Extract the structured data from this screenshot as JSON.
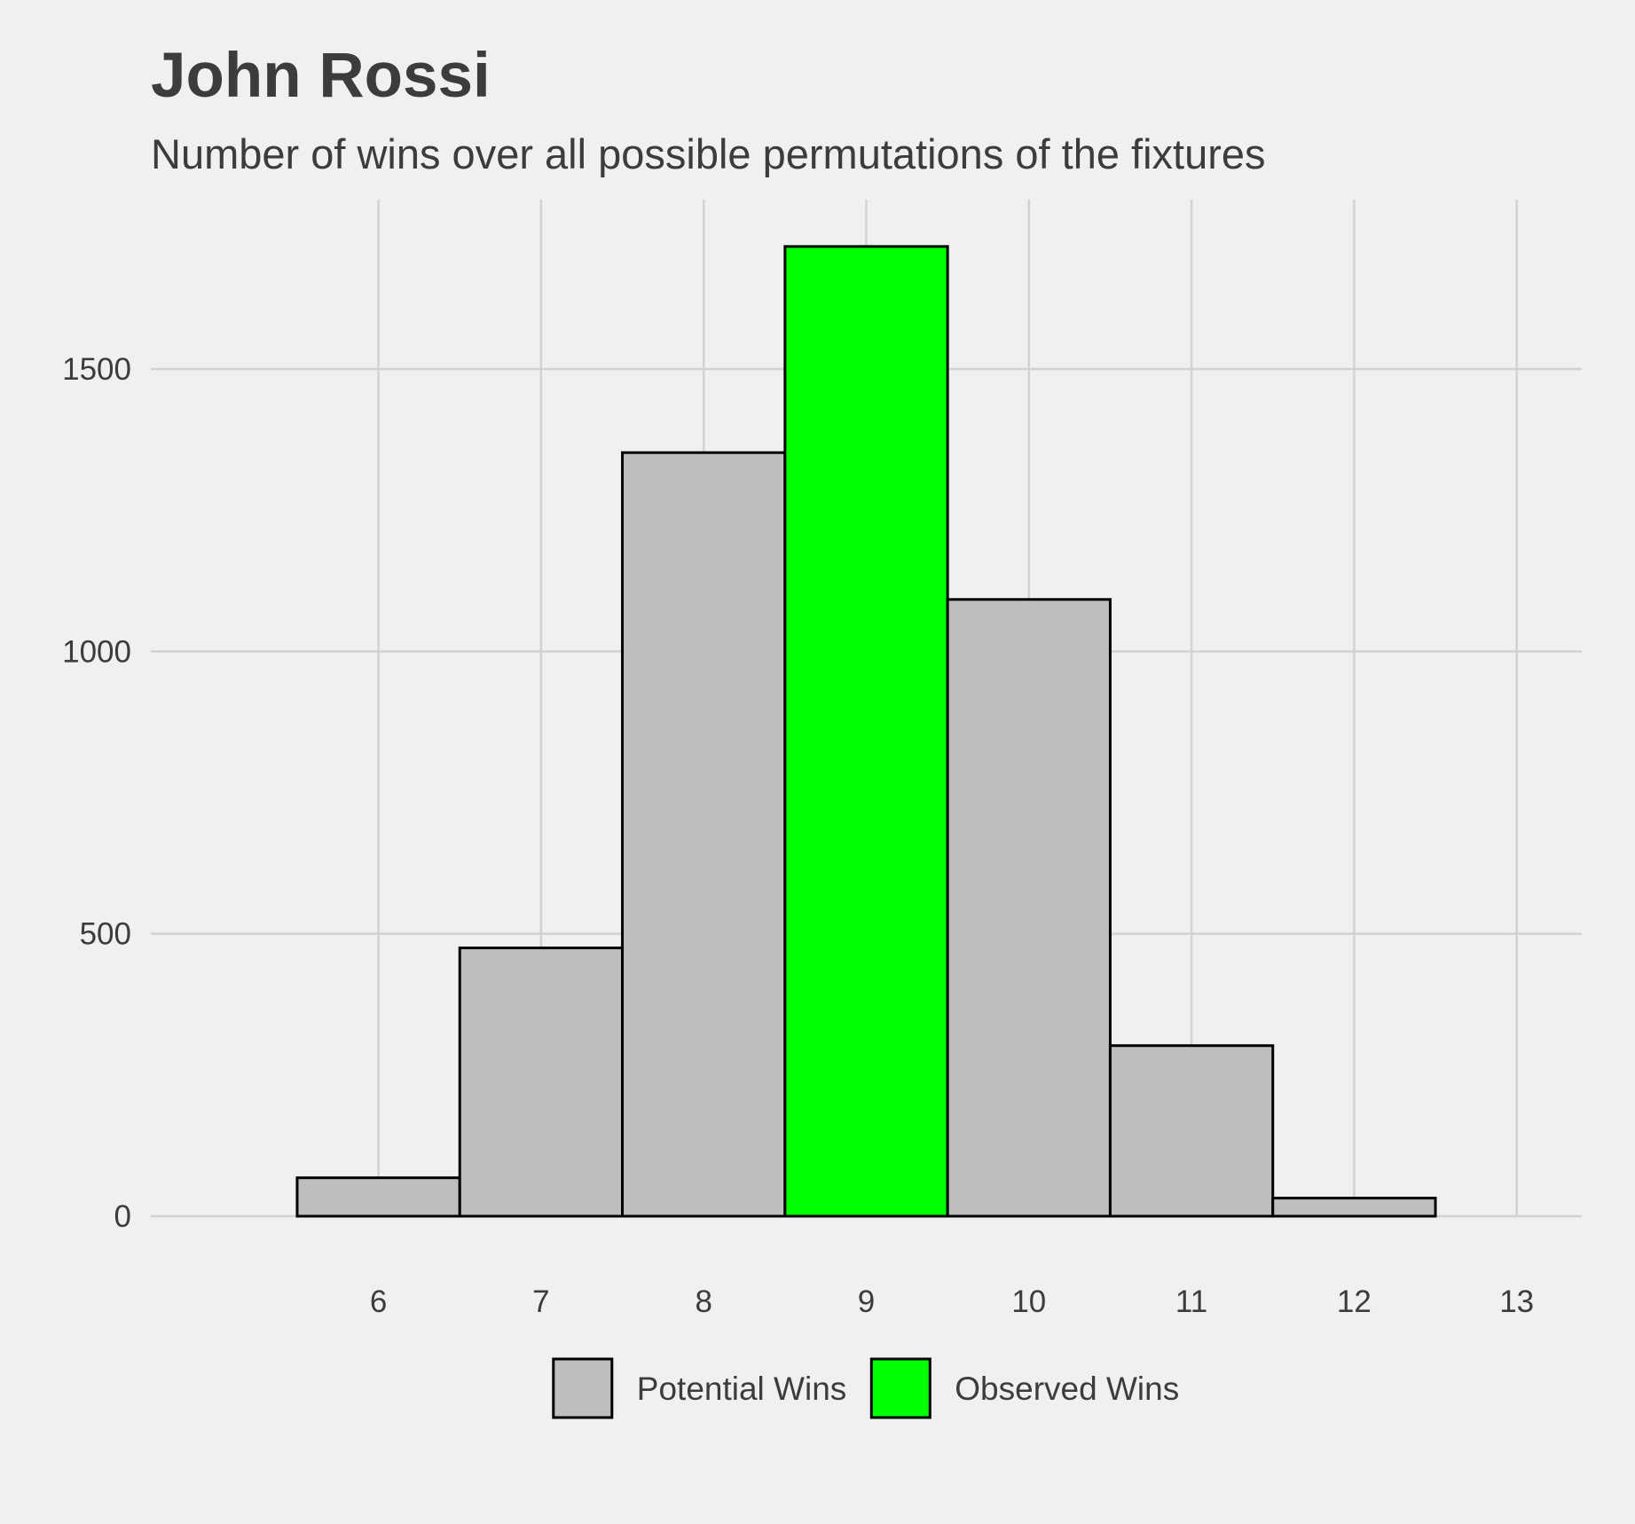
{
  "chart_data": {
    "type": "bar",
    "title": "John Rossi",
    "subtitle": "Number of wins over all possible permutations of the fixtures",
    "xlabel": "",
    "ylabel": "",
    "x_ticks": [
      6,
      7,
      8,
      9,
      10,
      11,
      12,
      13
    ],
    "y_ticks": [
      0,
      500,
      1000,
      1500
    ],
    "xlim": [
      4.6,
      13.4
    ],
    "ylim": [
      0,
      1800
    ],
    "grid": true,
    "legend_position": "bottom",
    "bin_width": 1,
    "bars": [
      {
        "x": 6,
        "value": 68,
        "series": "Potential Wins"
      },
      {
        "x": 7,
        "value": 475,
        "series": "Potential Wins"
      },
      {
        "x": 8,
        "value": 1352,
        "series": "Potential Wins"
      },
      {
        "x": 9,
        "value": 1717,
        "series": "Observed Wins"
      },
      {
        "x": 10,
        "value": 1092,
        "series": "Potential Wins"
      },
      {
        "x": 11,
        "value": 302,
        "series": "Potential Wins"
      },
      {
        "x": 12,
        "value": 32,
        "series": "Potential Wins"
      }
    ],
    "series": [
      {
        "name": "Potential Wins",
        "color": "#bebebe"
      },
      {
        "name": "Observed Wins",
        "color": "#00ff00"
      }
    ],
    "colors": {
      "background": "#f0f0f0",
      "grid": "#d2d2d2",
      "bar_outline": "#000000",
      "text": "#3c3c3c"
    }
  }
}
